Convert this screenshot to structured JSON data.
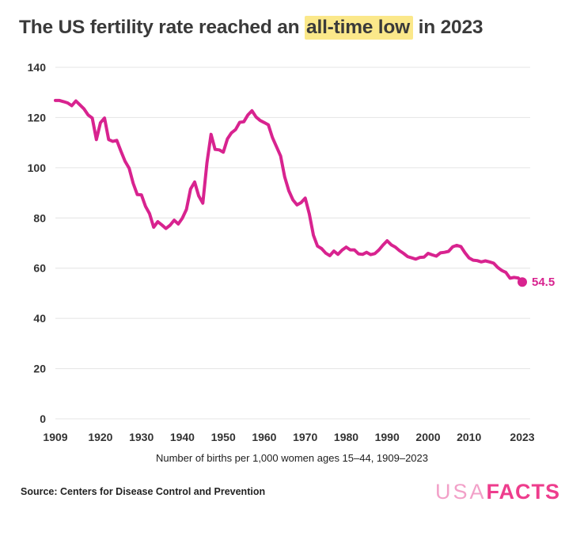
{
  "title": {
    "prefix": "The US fertility rate reached an ",
    "highlight": "all-time low",
    "suffix": " in 2023"
  },
  "caption": "Number of births per 1,000 women ages 15–44, 1909–2023",
  "source": "Source: Centers for Disease Control and Prevention",
  "logo": {
    "part1": "USA",
    "part2": "FACTS"
  },
  "colors": {
    "line": "#d8238f",
    "highlight": "#fbe88a",
    "grid": "#e4e4e4",
    "tick_text": "#333333",
    "logo_light": "#f2a0c8",
    "logo_bold": "#ee3d8d"
  },
  "chart_data": {
    "type": "line",
    "title": "The US fertility rate reached an all-time low in 2023",
    "xlabel": "",
    "ylabel": "",
    "ylim": [
      0,
      140
    ],
    "yticks": [
      0,
      20,
      40,
      60,
      80,
      100,
      120,
      140
    ],
    "xticks": [
      1909,
      1920,
      1930,
      1940,
      1950,
      1960,
      1970,
      1980,
      1990,
      2000,
      2010,
      2023
    ],
    "grid": "horizontal",
    "end_label": "54.5",
    "x": [
      1909,
      1910,
      1911,
      1912,
      1913,
      1914,
      1915,
      1916,
      1917,
      1918,
      1919,
      1920,
      1921,
      1922,
      1923,
      1924,
      1925,
      1926,
      1927,
      1928,
      1929,
      1930,
      1931,
      1932,
      1933,
      1934,
      1935,
      1936,
      1937,
      1938,
      1939,
      1940,
      1941,
      1942,
      1943,
      1944,
      1945,
      1946,
      1947,
      1948,
      1949,
      1950,
      1951,
      1952,
      1953,
      1954,
      1955,
      1956,
      1957,
      1958,
      1959,
      1960,
      1961,
      1962,
      1963,
      1964,
      1965,
      1966,
      1967,
      1968,
      1969,
      1970,
      1971,
      1972,
      1973,
      1974,
      1975,
      1976,
      1977,
      1978,
      1979,
      1980,
      1981,
      1982,
      1983,
      1984,
      1985,
      1986,
      1987,
      1988,
      1989,
      1990,
      1991,
      1992,
      1993,
      1994,
      1995,
      1996,
      1997,
      1998,
      1999,
      2000,
      2001,
      2002,
      2003,
      2004,
      2005,
      2006,
      2007,
      2008,
      2009,
      2010,
      2011,
      2012,
      2013,
      2014,
      2015,
      2016,
      2017,
      2018,
      2019,
      2020,
      2021,
      2022,
      2023
    ],
    "series": [
      {
        "name": "Number of births per 1,000 women ages 15-44",
        "values": [
          126.8,
          126.8,
          126.3,
          125.8,
          124.7,
          126.6,
          125.0,
          123.4,
          121.0,
          119.8,
          111.2,
          117.9,
          119.8,
          111.2,
          110.5,
          110.9,
          106.6,
          102.6,
          99.8,
          93.8,
          89.3,
          89.2,
          84.6,
          81.7,
          76.3,
          78.5,
          77.2,
          75.8,
          77.1,
          79.1,
          77.6,
          79.9,
          83.4,
          91.5,
          94.3,
          88.8,
          85.9,
          101.9,
          113.3,
          107.3,
          107.1,
          106.2,
          111.5,
          113.9,
          115.2,
          118.1,
          118.3,
          121.0,
          122.7,
          120.2,
          118.8,
          118.0,
          117.1,
          112.0,
          108.3,
          104.7,
          96.3,
          90.8,
          87.2,
          85.2,
          86.1,
          87.9,
          81.6,
          73.1,
          68.8,
          67.8,
          66.0,
          65.0,
          66.8,
          65.5,
          67.2,
          68.4,
          67.3,
          67.3,
          65.7,
          65.5,
          66.3,
          65.4,
          65.8,
          67.3,
          69.2,
          70.9,
          69.3,
          68.4,
          67.0,
          65.9,
          64.6,
          64.1,
          63.6,
          64.3,
          64.4,
          65.9,
          65.3,
          64.8,
          66.1,
          66.3,
          66.7,
          68.5,
          69.1,
          68.6,
          66.2,
          64.1,
          63.2,
          63.0,
          62.5,
          62.9,
          62.5,
          62.0,
          60.3,
          59.1,
          58.3,
          56.0,
          56.3,
          56.1,
          54.5
        ]
      }
    ]
  }
}
